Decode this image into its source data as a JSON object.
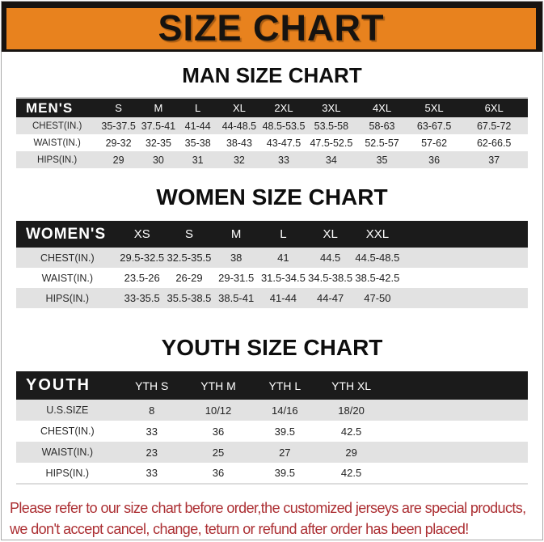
{
  "page": {
    "title": "SIZE CHART",
    "footer_lines": [
      "Please refer to our size chart before order,the customized jerseys are special products,",
      "we don't accept cancel, change, teturn or refund after order has been placed!"
    ],
    "colors": {
      "banner_orange": "#e8821e",
      "banner_frame_black": "#171310",
      "table_header_black": "#1b1b1b",
      "alt_row_gray": "#e2e2e2",
      "notice_red": "#ac2f33"
    }
  },
  "tables": [
    {
      "id": "men",
      "heading": "MAN SIZE CHART",
      "corner_label": "MEN'S",
      "columns": [
        "S",
        "M",
        "L",
        "XL",
        "2XL",
        "3XL",
        "4XL",
        "5XL",
        "6XL"
      ],
      "rows": [
        {
          "label": "CHEST(IN.)",
          "values": [
            "35-37.5",
            "37.5-41",
            "41-44",
            "44-48.5",
            "48.5-53.5",
            "53.5-58",
            "58-63",
            "63-67.5",
            "67.5-72"
          ]
        },
        {
          "label": "WAIST(IN.)",
          "values": [
            "29-32",
            "32-35",
            "35-38",
            "38-43",
            "43-47.5",
            "47.5-52.5",
            "52.5-57",
            "57-62",
            "62-66.5"
          ]
        },
        {
          "label": "HIPS(IN.)",
          "values": [
            "29",
            "30",
            "31",
            "32",
            "33",
            "34",
            "35",
            "36",
            "37"
          ]
        }
      ]
    },
    {
      "id": "women",
      "heading": "WOMEN SIZE CHART",
      "corner_label": "WOMEN'S",
      "columns": [
        "XS",
        "S",
        "M",
        "L",
        "XL",
        "XXL"
      ],
      "rows": [
        {
          "label": "CHEST(IN.)",
          "values": [
            "29.5-32.5",
            "32.5-35.5",
            "38",
            "41",
            "44.5",
            "44.5-48.5"
          ]
        },
        {
          "label": "WAIST(IN.)",
          "values": [
            "23.5-26",
            "26-29",
            "29-31.5",
            "31.5-34.5",
            "34.5-38.5",
            "38.5-42.5"
          ]
        },
        {
          "label": "HIPS(IN.)",
          "values": [
            "33-35.5",
            "35.5-38.5",
            "38.5-41",
            "41-44",
            "44-47",
            "47-50"
          ]
        }
      ]
    },
    {
      "id": "youth",
      "heading": "YOUTH SIZE CHART",
      "corner_label": "YOUTH",
      "columns": [
        "YTH S",
        "YTH M",
        "YTH L",
        "YTH XL"
      ],
      "rows": [
        {
          "label": "U.S.SIZE",
          "values": [
            "8",
            "10/12",
            "14/16",
            "18/20"
          ]
        },
        {
          "label": "CHEST(IN.)",
          "values": [
            "33",
            "36",
            "39.5",
            "42.5"
          ]
        },
        {
          "label": "WAIST(IN.)",
          "values": [
            "23",
            "25",
            "27",
            "29"
          ]
        },
        {
          "label": "HIPS(IN.)",
          "values": [
            "33",
            "36",
            "39.5",
            "42.5"
          ]
        }
      ]
    }
  ]
}
